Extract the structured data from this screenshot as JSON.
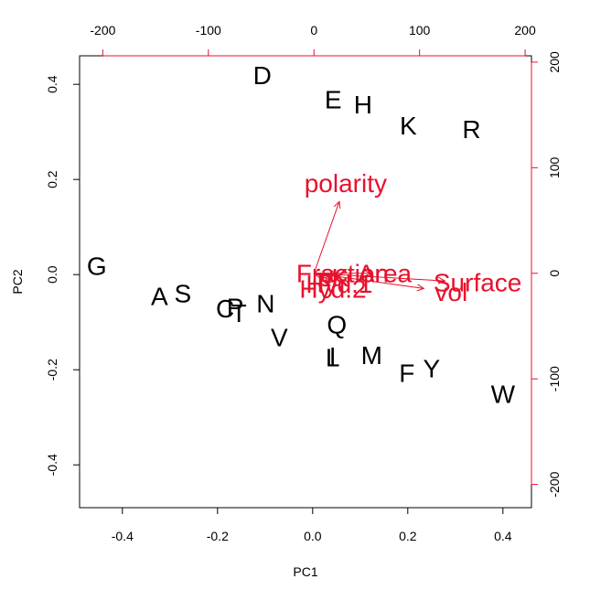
{
  "chart_data": {
    "type": "scatter",
    "subtype": "biplot",
    "title": "",
    "xlabel": "PC1",
    "ylabel": "PC2",
    "xlim": [
      -0.49,
      0.46
    ],
    "ylim": [
      -0.49,
      0.46
    ],
    "x_ticks": [
      -0.4,
      -0.2,
      0.0,
      0.2,
      0.4
    ],
    "y_ticks": [
      -0.4,
      -0.2,
      0.0,
      0.2,
      0.4
    ],
    "x_tick_labels": [
      "-0.4",
      "-0.2",
      "0.0",
      "0.2",
      "0.4"
    ],
    "y_tick_labels": [
      "-0.4",
      "-0.2",
      "0.0",
      "0.2",
      "0.4"
    ],
    "top_axis": {
      "lim": [
        -222,
        206
      ],
      "ticks": [
        -200,
        -100,
        0,
        100,
        200
      ],
      "tick_labels": [
        "-200",
        "-100",
        "0",
        "100",
        "200"
      ]
    },
    "right_axis": {
      "lim": [
        -222,
        206
      ],
      "ticks": [
        -200,
        -100,
        0,
        100,
        200
      ],
      "tick_labels": [
        "-200",
        "-100",
        "0",
        "100",
        "200"
      ]
    },
    "points": [
      {
        "label": "A",
        "x": -0.322,
        "y": -0.046
      },
      {
        "label": "R",
        "x": 0.334,
        "y": 0.305
      },
      {
        "label": "N",
        "x": -0.099,
        "y": -0.061
      },
      {
        "label": "D",
        "x": -0.106,
        "y": 0.419
      },
      {
        "label": "C",
        "x": -0.184,
        "y": -0.072
      },
      {
        "label": "Q",
        "x": 0.051,
        "y": -0.105
      },
      {
        "label": "E",
        "x": 0.043,
        "y": 0.368
      },
      {
        "label": "G",
        "x": -0.454,
        "y": 0.018
      },
      {
        "label": "H",
        "x": 0.106,
        "y": 0.357
      },
      {
        "label": "I",
        "x": 0.042,
        "y": -0.172
      },
      {
        "label": "L",
        "x": 0.042,
        "y": -0.175
      },
      {
        "label": "K",
        "x": 0.201,
        "y": 0.313
      },
      {
        "label": "M",
        "x": 0.124,
        "y": -0.17
      },
      {
        "label": "F",
        "x": 0.198,
        "y": -0.207
      },
      {
        "label": "P",
        "x": -0.163,
        "y": -0.069
      },
      {
        "label": "S",
        "x": -0.273,
        "y": -0.04
      },
      {
        "label": "T",
        "x": -0.155,
        "y": -0.081
      },
      {
        "label": "W",
        "x": 0.4,
        "y": -0.252
      },
      {
        "label": "Y",
        "x": 0.25,
        "y": -0.198
      },
      {
        "label": "V",
        "x": -0.07,
        "y": -0.132
      }
    ],
    "loadings": [
      {
        "label": "polarity",
        "x": 30,
        "y": 85
      },
      {
        "label": "Surface",
        "x": 155,
        "y": -9
      },
      {
        "label": "vol",
        "x": 130,
        "y": -18
      },
      {
        "label": "Area",
        "x": 67,
        "y": 0
      },
      {
        "label": "Fraction",
        "x": 27,
        "y": 0
      },
      {
        "label": "Hyd.2",
        "x": 18,
        "y": -15
      },
      {
        "label": "Hyd.1",
        "x": 24,
        "y": -10
      },
      {
        "label": "pK",
        "x": 18,
        "y": -4
      }
    ],
    "colors": {
      "points": "#000000",
      "loadings": "#e8112d",
      "axes": "#000000"
    },
    "grid": false,
    "legend": "none"
  }
}
